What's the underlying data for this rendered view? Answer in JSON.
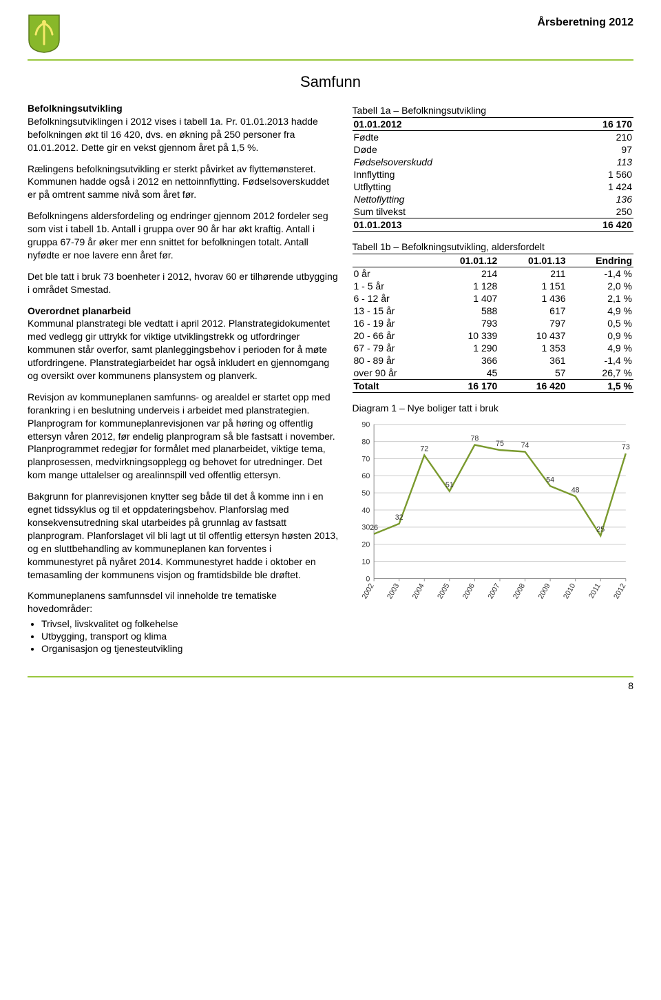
{
  "header": {
    "title": "Årsberetning 2012",
    "accent_color": "#9ac73e"
  },
  "page_number": "8",
  "section_title": "Samfunn",
  "left": {
    "h_befolk": "Befolkningsutvikling",
    "p1": "Befolkningsutviklingen i 2012 vises i tabell 1a. Pr. 01.01.2013 hadde befolkningen økt til 16 420, dvs. en økning på 250 personer fra 01.01.2012. Dette gir en vekst gjennom året på 1,5 %.",
    "p2": "Rælingens befolkningsutvikling er sterkt påvirket av flyttemønsteret. Kommunen hadde også i 2012 en nettoinnflytting. Fødselsoverskuddet er på omtrent samme nivå som året før.",
    "p3": "Befolkningens aldersfordeling og endringer gjennom 2012 fordeler seg som vist i tabell 1b. Antall i gruppa over 90 år har økt kraftig. Antall i gruppa 67-79 år øker mer enn snittet for befolkningen totalt. Antall nyfødte er noe lavere enn året før.",
    "p4": "Det ble tatt i bruk 73 boenheter i 2012, hvorav 60 er tilhørende utbygging i området Smestad.",
    "h_plan": "Overordnet planarbeid",
    "p5": "Kommunal planstrategi ble vedtatt i april 2012. Planstrategidokumentet med vedlegg gir uttrykk for viktige utviklingstrekk og utfordringer kommunen står overfor, samt planleggingsbehov i perioden for å møte utfordringene. Planstrategiarbeidet har også inkludert en gjennomgang og oversikt over kommunens plansystem og planverk.",
    "p6": "Revisjon av kommuneplanen samfunns- og arealdel er startet opp med forankring i en beslutning underveis i arbeidet med planstrategien. Planprogram for kommuneplanrevisjonen var på høring og offentlig ettersyn våren 2012, før endelig planprogram så ble fastsatt i november. Planprogrammet redegjør for formålet med planarbeidet, viktige tema, planprosessen, medvirkningsopplegg og behovet for utredninger. Det kom mange uttalelser og arealinnspill ved offentlig ettersyn.",
    "p7": "Bakgrunn for planrevisjonen knytter seg både til det å komme inn i en egnet tidssyklus og til et oppdateringsbehov. Planforslag med konsekvensutredning skal utarbeides på grunnlag av fastsatt planprogram. Planforslaget vil bli lagt ut til offentlig ettersyn høsten 2013, og en sluttbehandling av kommuneplanen kan forventes i kommunestyret på nyåret 2014. Kommunestyret hadde i oktober en temasamling der kommunens visjon og framtidsbilde ble drøftet.",
    "p8": "Kommuneplanens samfunnsdel vil inneholde tre tematiske hovedområder:",
    "bullets": [
      "Trivsel, livskvalitet og folkehelse",
      "Utbygging, transport og klima",
      "Organisasjon og tjenesteutvikling"
    ]
  },
  "table1a": {
    "title": "Tabell 1a – Befolkningsutvikling",
    "top_label": "01.01.2012",
    "top_value": "16 170",
    "rows": [
      {
        "label": "Fødte",
        "value": "210",
        "italic": false
      },
      {
        "label": "Døde",
        "value": "97",
        "italic": false
      },
      {
        "label": "Fødselsoverskudd",
        "value": "113",
        "italic": true
      },
      {
        "label": "Innflytting",
        "value": "1 560",
        "italic": false
      },
      {
        "label": "Utflytting",
        "value": "1 424",
        "italic": false
      },
      {
        "label": "Nettoflytting",
        "value": "136",
        "italic": true
      },
      {
        "label": "Sum tilvekst",
        "value": "250",
        "italic": false
      }
    ],
    "bottom_label": "01.01.2013",
    "bottom_value": "16 420"
  },
  "table1b": {
    "title": "Tabell 1b – Befolkningsutvikling, aldersfordelt",
    "col1": "01.01.12",
    "col2": "01.01.13",
    "col3": "Endring",
    "rows": [
      {
        "label": "0 år",
        "c1": "214",
        "c2": "211",
        "c3": "-1,4 %"
      },
      {
        "label": "1 - 5 år",
        "c1": "1 128",
        "c2": "1 151",
        "c3": "2,0 %"
      },
      {
        "label": "6 - 12 år",
        "c1": "1 407",
        "c2": "1 436",
        "c3": "2,1 %"
      },
      {
        "label": "13 - 15 år",
        "c1": "588",
        "c2": "617",
        "c3": "4,9 %"
      },
      {
        "label": "16 - 19 år",
        "c1": "793",
        "c2": "797",
        "c3": "0,5 %"
      },
      {
        "label": "20 - 66 år",
        "c1": "10 339",
        "c2": "10 437",
        "c3": "0,9 %"
      },
      {
        "label": "67 - 79 år",
        "c1": "1 290",
        "c2": "1 353",
        "c3": "4,9 %"
      },
      {
        "label": "80 - 89 år",
        "c1": "366",
        "c2": "361",
        "c3": "-1,4 %"
      },
      {
        "label": "over 90 år",
        "c1": "45",
        "c2": "57",
        "c3": "26,7 %"
      }
    ],
    "total": {
      "label": "Totalt",
      "c1": "16 170",
      "c2": "16 420",
      "c3": "1,5 %"
    }
  },
  "chart": {
    "title": "Diagram 1 – Nye boliger tatt i bruk",
    "type": "line",
    "years": [
      "2002",
      "2003",
      "2004",
      "2005",
      "2006",
      "2007",
      "2008",
      "2009",
      "2010",
      "2011",
      "2012"
    ],
    "values": [
      26,
      32,
      72,
      51,
      78,
      75,
      74,
      54,
      48,
      25,
      73
    ],
    "line_color": "#7a9a2e",
    "ylim": [
      0,
      90
    ],
    "ytick_step": 10,
    "grid_color": "#cccccc",
    "axis_color": "#888888",
    "label_fontsize": 11
  }
}
